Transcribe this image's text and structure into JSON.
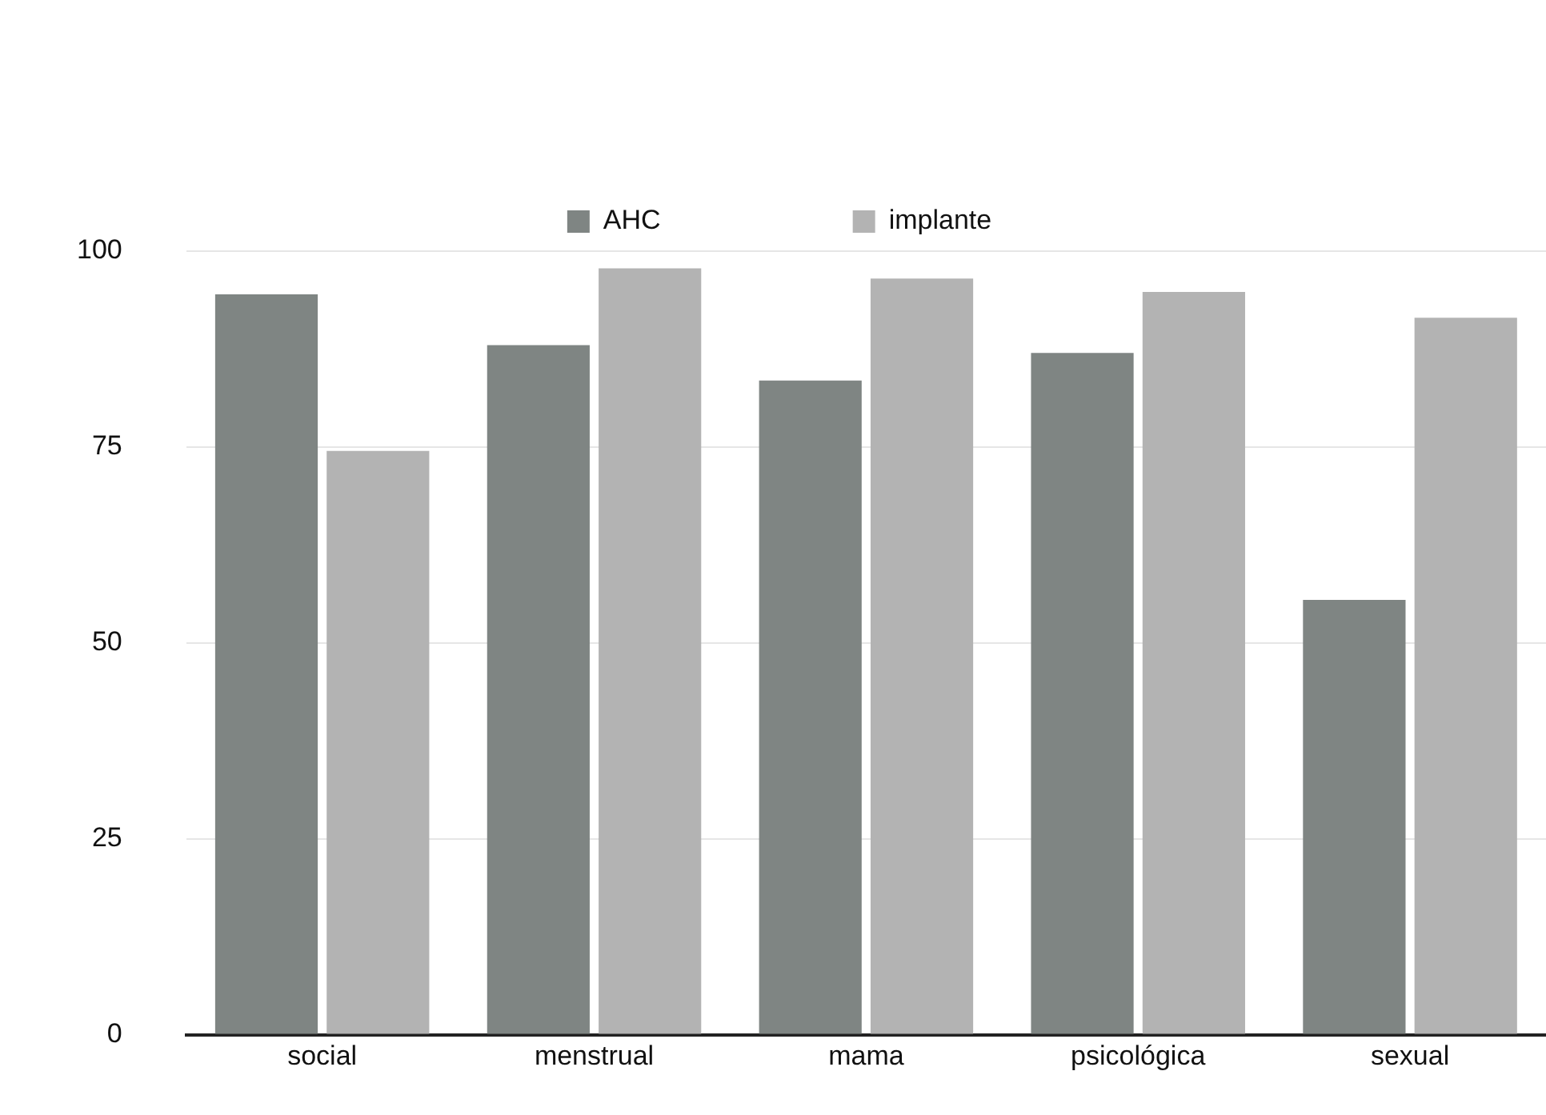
{
  "chart_data": {
    "type": "bar",
    "categories": [
      "social",
      "menstrual",
      "mama",
      "psicológica",
      "sexual"
    ],
    "series": [
      {
        "name": "AHC",
        "color": "#7f8583",
        "values": [
          94.5,
          88,
          83.5,
          87,
          55.5
        ]
      },
      {
        "name": "implante",
        "color": "#b3b3b3",
        "values": [
          74.5,
          97.8,
          96.5,
          94.8,
          91.5
        ]
      }
    ],
    "ylim": [
      0,
      100
    ],
    "yticks": [
      0,
      25,
      50,
      75,
      100
    ],
    "grid": "y",
    "legend": "top"
  }
}
